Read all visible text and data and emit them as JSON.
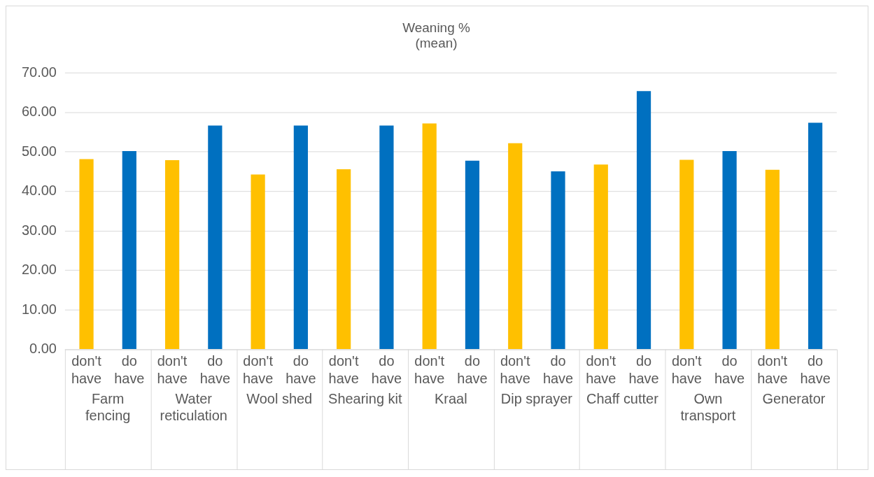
{
  "chart_data": {
    "type": "bar",
    "title": "Weaning %",
    "subtitle": "(mean)",
    "categories": [
      "Farm fencing",
      "Water reticulation",
      "Wool shed",
      "Shearing kit",
      "Kraal",
      "Dip sprayer",
      "Chaff cutter",
      "Own transport",
      "Generator"
    ],
    "series": [
      {
        "name": "don't have",
        "color": "#ffc000",
        "values": [
          48.2,
          47.9,
          44.3,
          45.6,
          57.2,
          52.2,
          46.8,
          48.0,
          45.5
        ]
      },
      {
        "name": "do have",
        "color": "#0070c0",
        "values": [
          50.2,
          56.7,
          56.7,
          56.7,
          47.8,
          45.1,
          65.4,
          50.2,
          57.4
        ]
      }
    ],
    "ylim": [
      0,
      70
    ],
    "yticks": [
      {
        "value": 0,
        "label": "0.00"
      },
      {
        "value": 10,
        "label": "10.00"
      },
      {
        "value": 20,
        "label": "20.00"
      },
      {
        "value": 30,
        "label": "30.00"
      },
      {
        "value": 40,
        "label": "40.00"
      },
      {
        "value": 50,
        "label": "50.00"
      },
      {
        "value": 60,
        "label": "60.00"
      },
      {
        "value": 70,
        "label": "70.00"
      }
    ],
    "grid": "y",
    "legend": false
  }
}
